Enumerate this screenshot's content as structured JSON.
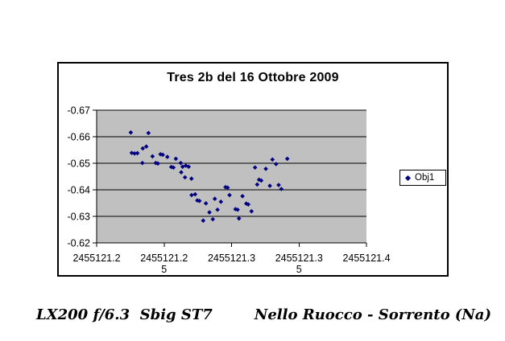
{
  "captions": {
    "left": "LX200 f/6.3  Sbig ST7",
    "right": "Nello Ruocco - Sorrento (Na)"
  },
  "chart": {
    "title": "Tres 2b del 16 Ottobre 2009",
    "legend": {
      "label": "Obj1"
    },
    "colors": {
      "plot_bg": "#c0c0c0",
      "grid": "#000000",
      "marker": "#000080",
      "frame": "#000000",
      "text": "#000000"
    }
  },
  "chart_data": {
    "type": "scatter",
    "title": "Tres 2b del 16 Ottobre 2009",
    "xlabel": "",
    "ylabel": "",
    "grid": true,
    "x_axis": {
      "min": 2455121.2,
      "max": 2455121.4,
      "unit": "JD",
      "ticks": [
        {
          "value": 2455121.2,
          "lines": [
            "2455121.2"
          ]
        },
        {
          "value": 2455121.25,
          "lines": [
            "2455121.2",
            "5"
          ]
        },
        {
          "value": 2455121.3,
          "lines": [
            "2455121.3"
          ]
        },
        {
          "value": 2455121.35,
          "lines": [
            "2455121.3",
            "5"
          ]
        },
        {
          "value": 2455121.4,
          "lines": [
            "2455121.4"
          ]
        }
      ]
    },
    "y_axis": {
      "top": -0.67,
      "bottom": -0.62,
      "inverted": true,
      "ticks": [
        -0.67,
        -0.66,
        -0.65,
        -0.64,
        -0.63,
        -0.62
      ],
      "tick_labels": [
        "-0.67",
        "-0.66",
        "-0.65",
        "-0.64",
        "-0.63",
        "-0.62"
      ]
    },
    "legend": {
      "position": "right",
      "entries": [
        {
          "label": "Obj1",
          "marker": "diamond",
          "color": "#000080"
        }
      ]
    },
    "series": [
      {
        "name": "Obj1",
        "marker": "diamond",
        "color": "#000080",
        "points": [
          [
            2455121.2253,
            -0.6616
          ],
          [
            2455121.226,
            -0.6539
          ],
          [
            2455121.2281,
            -0.6537
          ],
          [
            2455121.2302,
            -0.6538
          ],
          [
            2455121.2339,
            -0.6501
          ],
          [
            2455121.2342,
            -0.6556
          ],
          [
            2455121.2368,
            -0.6563
          ],
          [
            2455121.2384,
            -0.6614
          ],
          [
            2455121.2414,
            -0.6526
          ],
          [
            2455121.2438,
            -0.6501
          ],
          [
            2455121.2454,
            -0.6499
          ],
          [
            2455121.2473,
            -0.6534
          ],
          [
            2455121.249,
            -0.6532
          ],
          [
            2455121.2524,
            -0.6524
          ],
          [
            2455121.2553,
            -0.6486
          ],
          [
            2455121.2569,
            -0.6484
          ],
          [
            2455121.2587,
            -0.6517
          ],
          [
            2455121.2623,
            -0.6501
          ],
          [
            2455121.2627,
            -0.6466
          ],
          [
            2455121.2637,
            -0.6487
          ],
          [
            2455121.2655,
            -0.6447
          ],
          [
            2455121.2661,
            -0.6491
          ],
          [
            2455121.2682,
            -0.6487
          ],
          [
            2455121.2703,
            -0.6442
          ],
          [
            2455121.2704,
            -0.638
          ],
          [
            2455121.273,
            -0.6383
          ],
          [
            2455121.2746,
            -0.636
          ],
          [
            2455121.2762,
            -0.6358
          ],
          [
            2455121.279,
            -0.6284
          ],
          [
            2455121.281,
            -0.6349
          ],
          [
            2455121.2836,
            -0.6315
          ],
          [
            2455121.2861,
            -0.6289
          ],
          [
            2455121.2876,
            -0.6366
          ],
          [
            2455121.2896,
            -0.6325
          ],
          [
            2455121.2921,
            -0.6355
          ],
          [
            2455121.2955,
            -0.641
          ],
          [
            2455121.2971,
            -0.6408
          ],
          [
            2455121.2985,
            -0.638
          ],
          [
            2455121.3029,
            -0.6327
          ],
          [
            2455121.3045,
            -0.6325
          ],
          [
            2455121.3055,
            -0.6292
          ],
          [
            2455121.3081,
            -0.6376
          ],
          [
            2455121.3109,
            -0.6348
          ],
          [
            2455121.3124,
            -0.6345
          ],
          [
            2455121.3148,
            -0.6319
          ],
          [
            2455121.3174,
            -0.6484
          ],
          [
            2455121.319,
            -0.642
          ],
          [
            2455121.3204,
            -0.6438
          ],
          [
            2455121.322,
            -0.6435
          ],
          [
            2455121.3254,
            -0.6479
          ],
          [
            2455121.3284,
            -0.6415
          ],
          [
            2455121.3303,
            -0.6514
          ],
          [
            2455121.333,
            -0.6497
          ],
          [
            2455121.3349,
            -0.6418
          ],
          [
            2455121.3369,
            -0.6403
          ],
          [
            2455121.3413,
            -0.6517
          ]
        ]
      }
    ]
  }
}
